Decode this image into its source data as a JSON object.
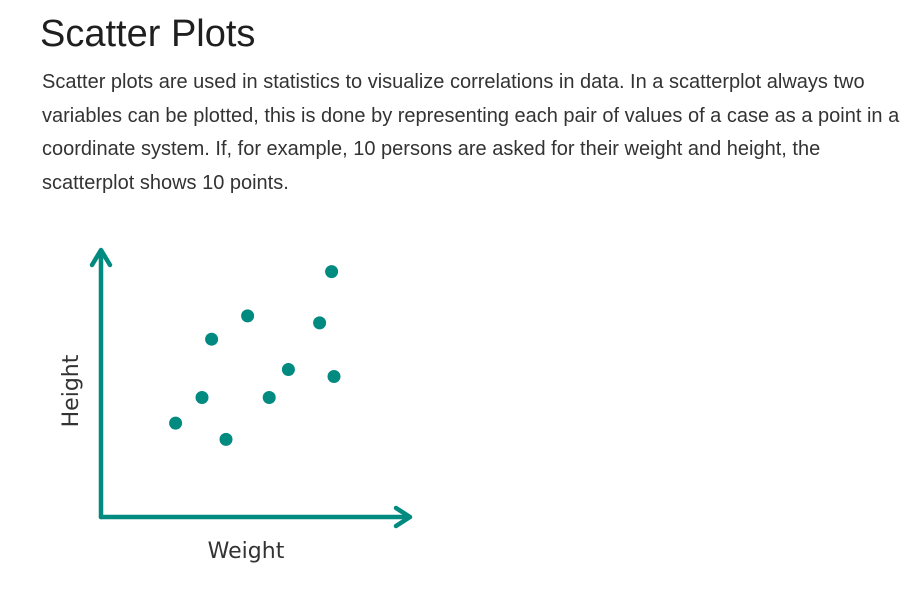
{
  "page": {
    "title": "Scatter Plots",
    "paragraph": "Scatter plots are used in statistics to visualize correlations in data. In a scatterplot always two variables can be plotted, this is done by representing each pair of values of a case as a point in a coordinate system. If, for example, 10 persons are asked for their weight and height, the scatterplot shows 10 points."
  },
  "colors": {
    "accent": "#008a80",
    "text": "#333333"
  },
  "chart_data": {
    "type": "scatter",
    "title": "",
    "xlabel": "Weight",
    "ylabel": "Height",
    "xlim": [
      0,
      10
    ],
    "ylim": [
      0,
      10
    ],
    "grid": false,
    "legend": "none",
    "series": [
      {
        "x": [
          1.9,
          3.0,
          3.4,
          4.0,
          4.9,
          5.8,
          6.6,
          7.9,
          8.5,
          8.4
        ],
        "y": [
          2.7,
          3.8,
          6.3,
          2.0,
          7.3,
          3.8,
          5.0,
          7.0,
          4.7,
          9.2
        ]
      }
    ]
  }
}
